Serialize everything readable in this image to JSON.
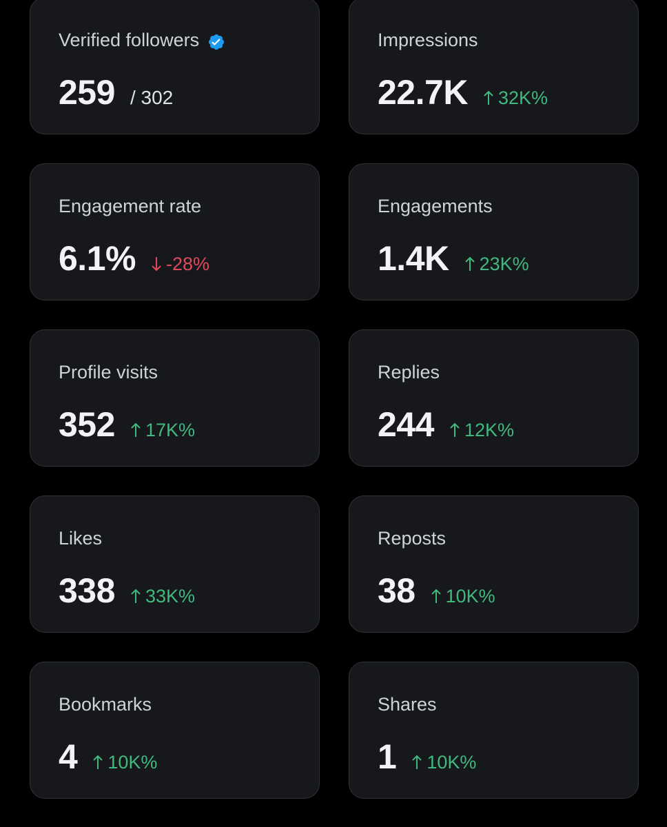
{
  "colors": {
    "background": "#000000",
    "card": "#16181c",
    "border": "#2f3336",
    "up": "#3fb97e",
    "down": "#e0485b",
    "verified": "#1d9bf0"
  },
  "cards": [
    {
      "label": "Verified followers",
      "value": "259",
      "sub": "/ 302",
      "icon": "verified-badge-icon"
    },
    {
      "label": "Impressions",
      "value": "22.7K",
      "delta": "32K%",
      "direction": "up"
    },
    {
      "label": "Engagement rate",
      "value": "6.1%",
      "delta": "-28%",
      "direction": "down"
    },
    {
      "label": "Engagements",
      "value": "1.4K",
      "delta": "23K%",
      "direction": "up"
    },
    {
      "label": "Profile visits",
      "value": "352",
      "delta": "17K%",
      "direction": "up"
    },
    {
      "label": "Replies",
      "value": "244",
      "delta": "12K%",
      "direction": "up"
    },
    {
      "label": "Likes",
      "value": "338",
      "delta": "33K%",
      "direction": "up"
    },
    {
      "label": "Reposts",
      "value": "38",
      "delta": "10K%",
      "direction": "up"
    },
    {
      "label": "Bookmarks",
      "value": "4",
      "delta": "10K%",
      "direction": "up"
    },
    {
      "label": "Shares",
      "value": "1",
      "delta": "10K%",
      "direction": "up"
    }
  ]
}
